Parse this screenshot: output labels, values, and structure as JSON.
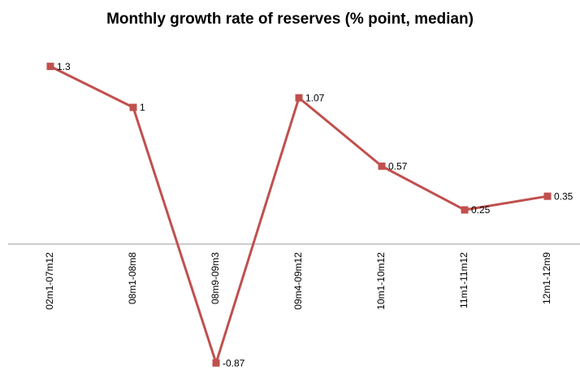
{
  "chart_data": {
    "type": "line",
    "title": "Monthly growth rate of reserves (% point, median)",
    "categories": [
      "02m1-07m12",
      "08m1-08m8",
      "08m9-09m3",
      "09m4-09m12",
      "10m1-10m12",
      "11m1-11m12",
      "12m1-12m9"
    ],
    "values": [
      1.3,
      1,
      -0.87,
      1.07,
      0.57,
      0.25,
      0.35
    ],
    "color": "#c0504d",
    "ylim": [
      -1,
      1.5
    ]
  }
}
